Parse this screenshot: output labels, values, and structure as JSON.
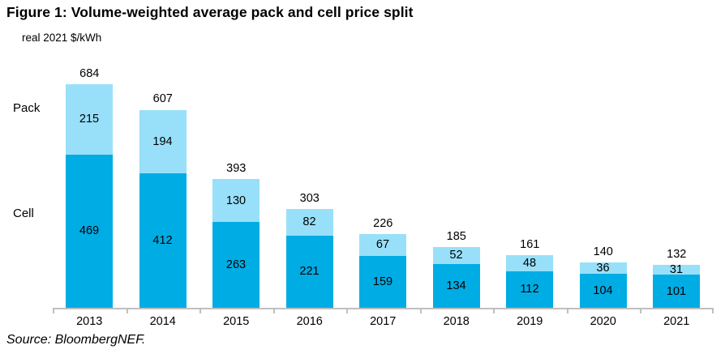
{
  "title": "Figure 1: Volume-weighted average pack and cell price split",
  "units_label": "real 2021 $/kWh",
  "source": "Source: BloombergNEF.",
  "series_labels": {
    "pack": "Pack",
    "cell": "Cell"
  },
  "colors": {
    "pack": "#98E0F9",
    "cell": "#00ACE4",
    "axis": "#BFBFBF",
    "text": "#000000"
  },
  "chart_data": {
    "type": "bar",
    "stacked": true,
    "title": "Figure 1: Volume-weighted average pack and cell price split",
    "ylabel": "real 2021 $/kWh",
    "categories": [
      "2013",
      "2014",
      "2015",
      "2016",
      "2017",
      "2018",
      "2019",
      "2020",
      "2021"
    ],
    "series": [
      {
        "name": "Cell",
        "values": [
          469,
          412,
          263,
          221,
          159,
          134,
          112,
          104,
          101
        ]
      },
      {
        "name": "Pack",
        "values": [
          215,
          194,
          130,
          82,
          67,
          52,
          48,
          36,
          31
        ]
      }
    ],
    "totals": [
      684,
      607,
      393,
      303,
      226,
      185,
      161,
      140,
      132
    ],
    "ylim": [
      0,
      700
    ],
    "grid": false,
    "legend_position": "left-of-plot",
    "value_labels": true
  }
}
